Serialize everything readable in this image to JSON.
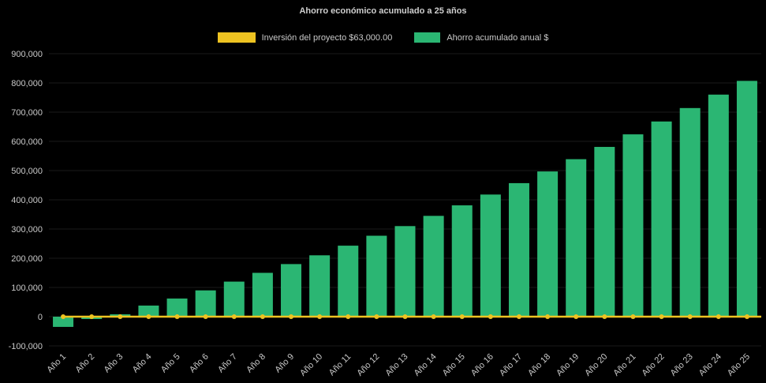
{
  "chart": {
    "title": "Ahorro económico acumulado a 25 años",
    "legend": [
      {
        "label": "Inversión del proyecto $63,000.00",
        "color": "#eec321"
      },
      {
        "label": "Ahorro acumulado anual $",
        "color": "#2bb673"
      }
    ]
  },
  "chart_data": {
    "type": "bar",
    "title": "Ahorro económico acumulado a 25 años",
    "categories": [
      "Año 1",
      "Año 2",
      "Año 3",
      "Año 4",
      "Año 5",
      "Año 6",
      "Año 7",
      "Año 8",
      "Año 9",
      "Año 10",
      "Año 11",
      "Año 12",
      "Año 13",
      "Año 14",
      "Año 15",
      "Año 16",
      "Año 17",
      "Año 18",
      "Año 19",
      "Año 20",
      "Año 21",
      "Año 22",
      "Año 23",
      "Año 24",
      "Año 25"
    ],
    "series": [
      {
        "name": "Ahorro acumulado anual $",
        "type": "bar",
        "color": "#2bb673",
        "values": [
          -35000,
          -8000,
          8000,
          38000,
          62000,
          90000,
          120000,
          150000,
          180000,
          210000,
          243000,
          277000,
          310000,
          345000,
          381000,
          418000,
          457000,
          497000,
          539000,
          581000,
          624000,
          668000,
          714000,
          760000,
          807000
        ]
      },
      {
        "name": "Inversión del proyecto $63,000.00",
        "type": "line",
        "color": "#eec321",
        "values": [
          0,
          0,
          0,
          0,
          0,
          0,
          0,
          0,
          0,
          0,
          0,
          0,
          0,
          0,
          0,
          0,
          0,
          0,
          0,
          0,
          0,
          0,
          0,
          0,
          0
        ]
      }
    ],
    "ylim": [
      -100000,
      900000
    ],
    "ytick_step": 100000,
    "grid": false,
    "legend_position": "top",
    "background": "#000000",
    "text_color": "#c9c9c9",
    "xlabel": "",
    "ylabel": ""
  }
}
